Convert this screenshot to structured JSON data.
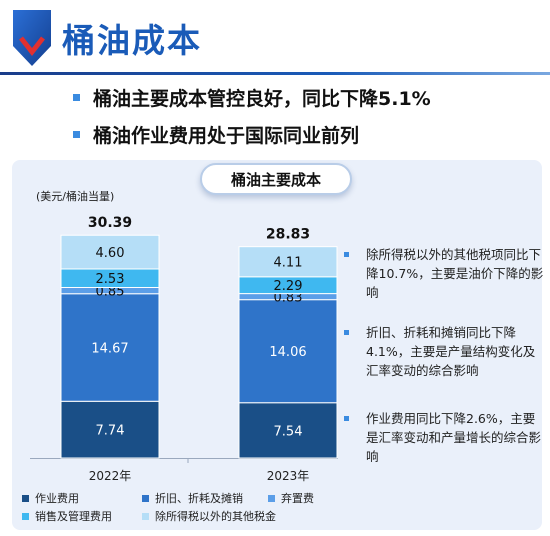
{
  "header": {
    "title": "桶油成本",
    "bullets": [
      "桶油主要成本管控良好，同比下降5.1%",
      "桶油作业费用处于国际同业前列"
    ]
  },
  "chart_data": {
    "type": "bar",
    "stacked": true,
    "title": "桶油主要成本",
    "unit_label": "(美元/桶油当量)",
    "categories": [
      "2022年",
      "2023年"
    ],
    "totals": [
      "30.39",
      "28.83"
    ],
    "series": [
      {
        "name": "作业费用",
        "values": [
          7.74,
          7.54
        ],
        "labels": [
          "7.74",
          "7.54"
        ],
        "color": "#1a4f87",
        "label_color": "#ffffff"
      },
      {
        "name": "折旧、折耗及摊销",
        "values": [
          14.67,
          14.06
        ],
        "labels": [
          "14.67",
          "14.06"
        ],
        "color": "#2f74c9",
        "label_color": "#ffffff"
      },
      {
        "name": "弃置费",
        "values": [
          0.85,
          0.83
        ],
        "labels": [
          "0.85",
          "0.83"
        ],
        "color": "#5b9ee8",
        "label_color": "#111111"
      },
      {
        "name": "销售及管理费用",
        "values": [
          2.53,
          2.29
        ],
        "labels": [
          "2.53",
          "2.29"
        ],
        "color": "#3fb8f0",
        "label_color": "#111111"
      },
      {
        "name": "除所得税以外的其他税金",
        "values": [
          4.6,
          4.11
        ],
        "labels": [
          "4.60",
          "4.11"
        ],
        "color": "#b5def7",
        "label_color": "#111111"
      }
    ],
    "legend_position": "bottom",
    "grid": false
  },
  "notes": [
    "除所得税以外的其他税项同比下降10.7%，主要是油价下降的影响",
    "折旧、折耗和摊销同比下降4.1%，主要是产量结构变化及汇率变动的综合影响",
    "作业费用同比下降2.6%，主要是汇率变动和产量增长的综合影响"
  ]
}
